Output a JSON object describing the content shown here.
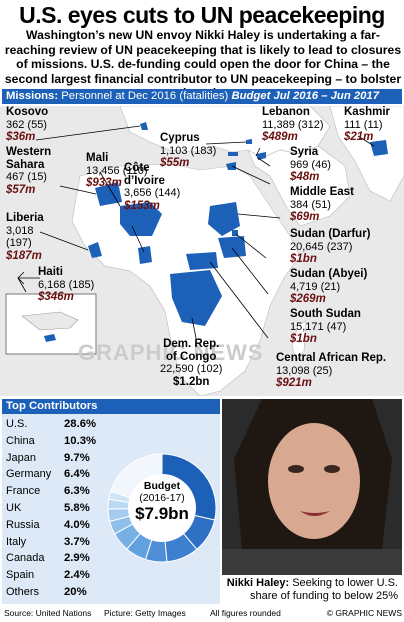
{
  "title": "U.S. eyes cuts to UN peacekeeping",
  "intro": "Washington’s new UN envoy Nikki Haley is undertaking a far-reaching review of UN peacekeeping that is likely to lead to closures of missions. U.S. de-funding could open the door for China – the second largest financial contributor to UN peacekeeping – to bolster its role",
  "bar": {
    "missions": "Missions:",
    "personnel": "Personnel at Dec 2016 (fatalities)",
    "budget": "Budget Jul 2016 – Jun 2017"
  },
  "missions": [
    {
      "id": "kosovo",
      "name": "Kosovo",
      "stats": "362 (55)",
      "budget": "$36m"
    },
    {
      "id": "wsahara",
      "name": "Western\nSahara",
      "stats": "467 (15)",
      "budget": "$57m"
    },
    {
      "id": "mali",
      "name": "Mali",
      "stats": "13,456 (110)",
      "budget": "$933m"
    },
    {
      "id": "liberia",
      "name": "Liberia",
      "stats": "3,018\n(197)",
      "budget": "$187m"
    },
    {
      "id": "cote",
      "name": "Côte\nd’Ivoire",
      "stats": "3,656 (144)",
      "budget": "$153m"
    },
    {
      "id": "cyprus",
      "name": "Cyprus",
      "stats": "1,103 (183)",
      "budget": "$55m"
    },
    {
      "id": "lebanon",
      "name": "Lebanon",
      "stats": "11,389 (312)",
      "budget": "$489m"
    },
    {
      "id": "kashmir",
      "name": "Kashmir",
      "stats": "111 (11)",
      "budget": "$21m"
    },
    {
      "id": "syria",
      "name": "Syria",
      "stats": "969 (46)",
      "budget": "$48m"
    },
    {
      "id": "mideast",
      "name": "Middle East",
      "stats": "384 (51)",
      "budget": "$69m"
    },
    {
      "id": "darfur",
      "name": "Sudan (Darfur)",
      "stats": "20,645 (237)",
      "budget": "$1bn"
    },
    {
      "id": "abyei",
      "name": "Sudan (Abyei)",
      "stats": "4,719 (21)",
      "budget": "$269m"
    },
    {
      "id": "ssudan",
      "name": "South Sudan",
      "stats": "15,171 (47)",
      "budget": "$1bn"
    },
    {
      "id": "car",
      "name": "Central African Rep.",
      "stats": "13,098 (25)",
      "budget": "$921m"
    },
    {
      "id": "haiti",
      "name": "Haiti",
      "stats": "6,168 (185)",
      "budget": "$346m"
    },
    {
      "id": "drc",
      "name": "Dem. Rep.\nof Congo",
      "stats": "22,590 (102)",
      "budget": "$1.2bn"
    }
  ],
  "watermark": "GRAPHIC NEWS",
  "contributors": {
    "heading": "Top Contributors",
    "rows": [
      {
        "country": "U.S.",
        "pct": "28.6%"
      },
      {
        "country": "China",
        "pct": "10.3%"
      },
      {
        "country": "Japan",
        "pct": "9.7%"
      },
      {
        "country": "Germany",
        "pct": "6.4%"
      },
      {
        "country": "France",
        "pct": "6.3%"
      },
      {
        "country": "UK",
        "pct": "5.8%"
      },
      {
        "country": "Russia",
        "pct": "4.0%"
      },
      {
        "country": "Italy",
        "pct": "3.7%"
      },
      {
        "country": "Canada",
        "pct": "2.9%"
      },
      {
        "country": "Spain",
        "pct": "2.4%"
      },
      {
        "country": "Others",
        "pct": "20%"
      }
    ],
    "donut_values": [
      28.6,
      10.3,
      9.7,
      6.4,
      6.3,
      5.8,
      4.0,
      3.7,
      2.9,
      2.4,
      20
    ],
    "donut_label": "Budget",
    "donut_period": "(2016-17)",
    "donut_total": "$7.9bn"
  },
  "caption": {
    "name": "Nikki Haley:",
    "text": "Seeking to lower U.S. share of funding to below 25%"
  },
  "footer": {
    "source": "Source: United Nations",
    "picture": "Picture: Getty Images",
    "note": "All figures rounded",
    "credit": "© GRAPHIC NEWS"
  },
  "colors": {
    "accent": "#1d60b8",
    "budget_text": "#6a1010",
    "land": "#ffffff",
    "sea": "#e9e9e9",
    "mission": "#1d60b8"
  }
}
